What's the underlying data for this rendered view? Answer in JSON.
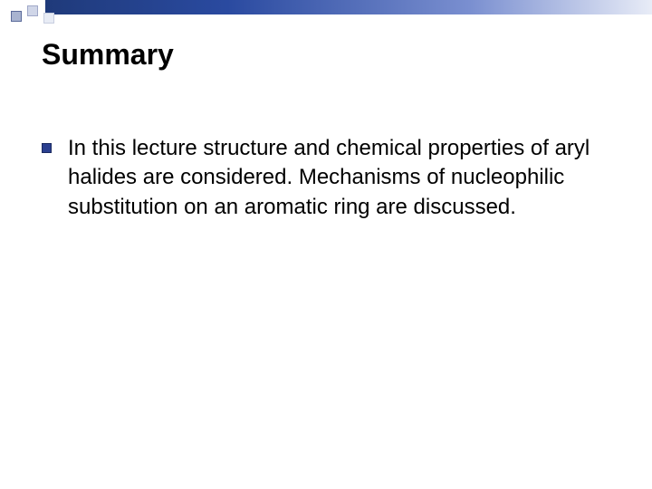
{
  "slide": {
    "title": "Summary",
    "bullets": [
      "In this lecture structure and chemical properties of aryl halides are considered. Mechanisms of nucleophilic substitution on an aromatic ring are discussed."
    ]
  },
  "styling": {
    "background_color": "#ffffff",
    "title_color": "#000000",
    "title_fontsize": 32,
    "title_weight": "bold",
    "body_color": "#000000",
    "body_fontsize": 24,
    "bullet_marker_color": "#2a3f8f",
    "top_bar_gradient_start": "#1f3a7a",
    "top_bar_gradient_end": "#e8ecf7",
    "decorative_squares": [
      {
        "fill": "#a8b3d0",
        "border": "#5a6a9a"
      },
      {
        "fill": "#d0d6e8",
        "border": "#a0a8c8"
      },
      {
        "fill": "#e8ecf5",
        "border": "#c8cee0"
      }
    ]
  }
}
